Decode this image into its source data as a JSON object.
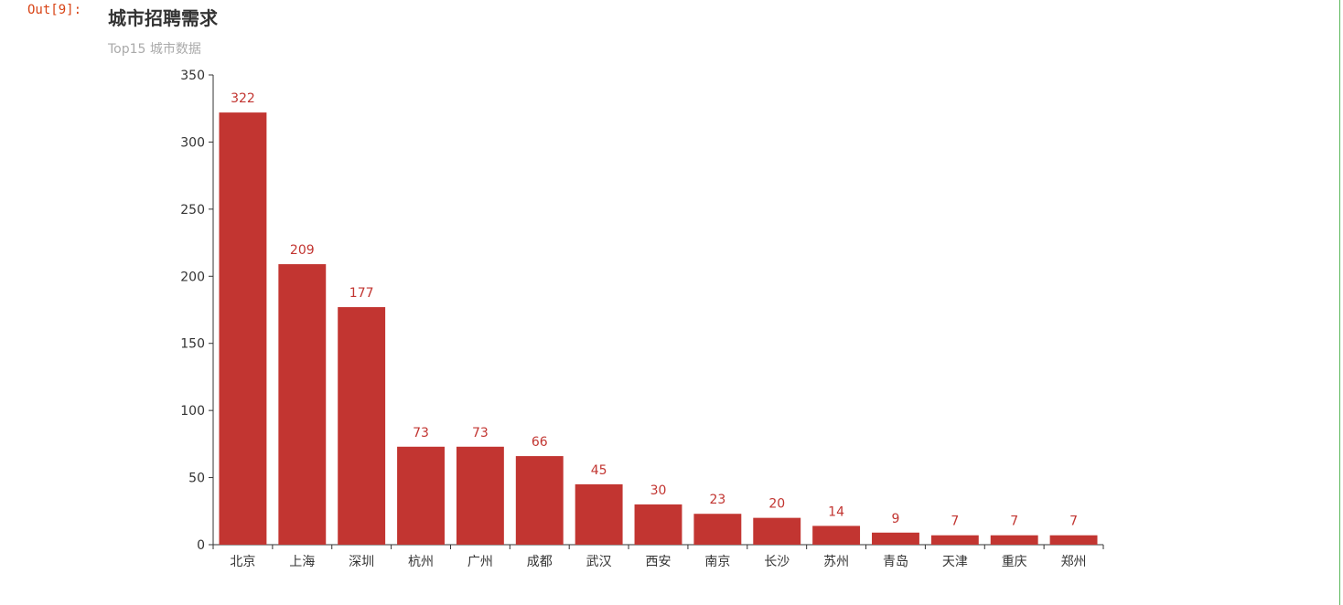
{
  "cell": {
    "prompt": "Out[9]:"
  },
  "chart_data": {
    "type": "bar",
    "title": "城市招聘需求",
    "subtitle": "Top15 城市数据",
    "categories": [
      "北京",
      "上海",
      "深圳",
      "杭州",
      "广州",
      "成都",
      "武汉",
      "西安",
      "南京",
      "长沙",
      "苏州",
      "青岛",
      "天津",
      "重庆",
      "郑州"
    ],
    "values": [
      322,
      209,
      177,
      73,
      73,
      66,
      45,
      30,
      23,
      20,
      14,
      9,
      7,
      7,
      7
    ],
    "ylim": [
      0,
      350
    ],
    "yticks": [
      0,
      50,
      100,
      150,
      200,
      250,
      300,
      350
    ],
    "xlabel": "",
    "ylabel": "",
    "grid": false,
    "bar_color": "#c23531",
    "label_color": "#c23531",
    "axis_color": "#333333",
    "show_data_labels": true
  }
}
